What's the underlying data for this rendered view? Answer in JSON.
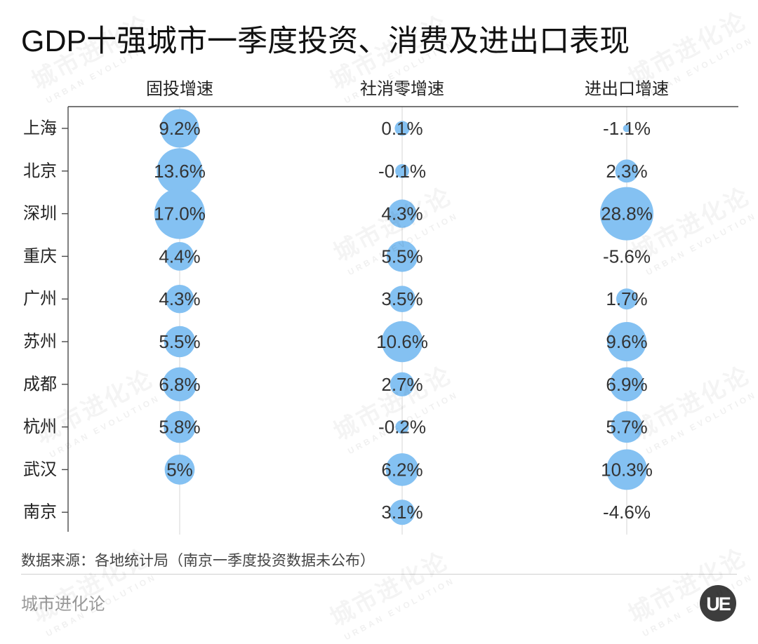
{
  "chart_data": {
    "type": "table",
    "title": "GDP十强城市一季度投资、消费及进出口表现",
    "categories": [
      "上海",
      "北京",
      "深圳",
      "重庆",
      "广州",
      "苏州",
      "成都",
      "杭州",
      "武汉",
      "南京"
    ],
    "series": [
      {
        "name": "固投增速",
        "values": [
          9.2,
          13.6,
          17.0,
          4.4,
          4.3,
          5.5,
          6.8,
          5.8,
          5,
          null
        ],
        "labels": [
          "9.2%",
          "13.6%",
          "17.0%",
          "4.4%",
          "4.3%",
          "5.5%",
          "6.8%",
          "5.8%",
          "5%",
          null
        ]
      },
      {
        "name": "社消零增速",
        "values": [
          0.1,
          -0.1,
          4.3,
          5.5,
          3.5,
          10.6,
          2.7,
          -0.2,
          6.2,
          3.1
        ],
        "labels": [
          "0.1%",
          "-0.1%",
          "4.3%",
          "5.5%",
          "3.5%",
          "10.6%",
          "2.7%",
          "-0.2%",
          "6.2%",
          "3.1%"
        ]
      },
      {
        "name": "进出口增速",
        "values": [
          -1.1,
          2.3,
          28.8,
          -5.6,
          1.7,
          9.6,
          6.9,
          5.7,
          10.3,
          -4.6
        ],
        "labels": [
          "-1.1%",
          "2.3%",
          "28.8%",
          "-5.6%",
          "1.7%",
          "9.6%",
          "6.9%",
          "5.7%",
          "10.3%",
          "-4.6%"
        ]
      }
    ]
  },
  "source": "数据来源：各地统计局（南京一季度投资数据未公布）",
  "footer": {
    "brand": "城市进化论"
  },
  "logo": {
    "text": "UE"
  },
  "watermark": {
    "text": "城市进化论",
    "subtext": "URBAN EVOLUTION"
  },
  "colors": {
    "bubble": "#84c1f2",
    "value_text": "#333333",
    "axis": "#4a4a4a",
    "gridline": "#d4d4d4",
    "logo_badge": "#3d3d3d"
  }
}
